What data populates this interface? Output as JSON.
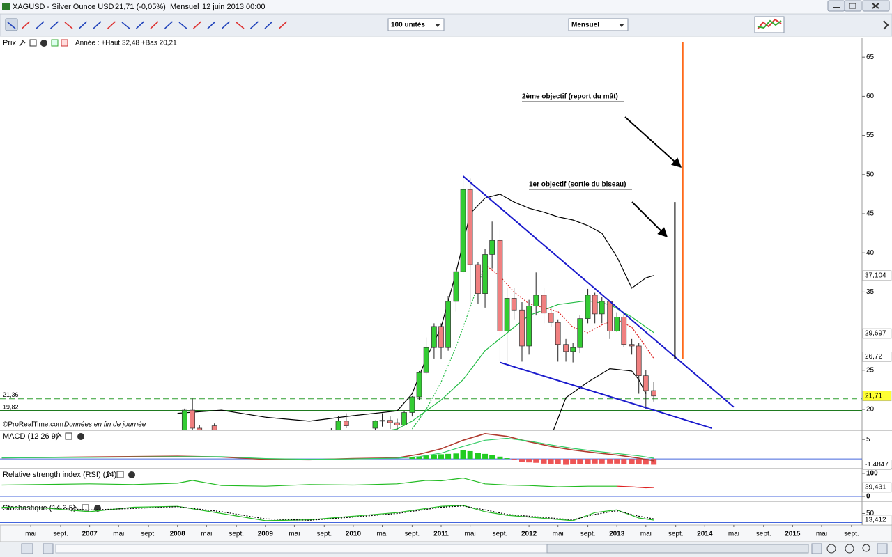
{
  "window": {
    "title": "XAGUSD - Silver Ounce USD",
    "quote": "21,71 (-0,05%)",
    "period": "Mensuel",
    "date": "12 juin 2013 00:00"
  },
  "toolbar": {
    "units": "100 unités",
    "timeframe": "Mensuel"
  },
  "footer": {
    "source": "©ProRealTime.com",
    "note": "Données en fin de journée"
  },
  "annotations": [
    "2ème objectif (report du mât)",
    "1er objectif (sortie du biseau)"
  ],
  "chart_data": [
    {
      "type": "candlestick",
      "title": "Prix",
      "subtitle": "Année : +Haut 32,48 +Bas 20,21",
      "up_color": "#33cc33",
      "down_color": "#f08080",
      "xlim": [
        2005.98,
        2015.79
      ],
      "ylim": [
        17.42,
        67.42
      ],
      "yticks": [
        20,
        25,
        35,
        40,
        45,
        50,
        55,
        60,
        65
      ],
      "xticks": [
        {
          "value": 2006.33,
          "label": "mai"
        },
        {
          "value": 2006.67,
          "label": "sept."
        },
        {
          "value": 2007,
          "label": "2007"
        },
        {
          "value": 2007.33,
          "label": "mai"
        },
        {
          "value": 2007.67,
          "label": "sept."
        },
        {
          "value": 2008,
          "label": "2008"
        },
        {
          "value": 2008.33,
          "label": "mai"
        },
        {
          "value": 2008.67,
          "label": "sept."
        },
        {
          "value": 2009,
          "label": "2009"
        },
        {
          "value": 2009.33,
          "label": "mai"
        },
        {
          "value": 2009.67,
          "label": "sept."
        },
        {
          "value": 2010,
          "label": "2010"
        },
        {
          "value": 2010.33,
          "label": "mai"
        },
        {
          "value": 2010.67,
          "label": "sept."
        },
        {
          "value": 2011,
          "label": "2011"
        },
        {
          "value": 2011.33,
          "label": "mai"
        },
        {
          "value": 2011.67,
          "label": "sept."
        },
        {
          "value": 2012,
          "label": "2012"
        },
        {
          "value": 2012.33,
          "label": "mai"
        },
        {
          "value": 2012.67,
          "label": "sept."
        },
        {
          "value": 2013,
          "label": "2013"
        },
        {
          "value": 2013.33,
          "label": "mai"
        },
        {
          "value": 2013.67,
          "label": "sept."
        },
        {
          "value": 2014,
          "label": "2014"
        },
        {
          "value": 2014.33,
          "label": "mai"
        },
        {
          "value": 2014.67,
          "label": "sept."
        },
        {
          "value": 2015,
          "label": "2015"
        },
        {
          "value": 2015.33,
          "label": "mai"
        },
        {
          "value": 2015.67,
          "label": "sept."
        }
      ],
      "x": [
        2008.08,
        2008.17,
        2008.25,
        2008.42,
        2009.75,
        2009.83,
        2009.92,
        2010.25,
        2010.33,
        2010.42,
        2010.5,
        2010.58,
        2010.67,
        2010.75,
        2010.83,
        2010.92,
        2011,
        2011.08,
        2011.17,
        2011.25,
        2011.33,
        2011.42,
        2011.5,
        2011.58,
        2011.67,
        2011.75,
        2011.83,
        2011.92,
        2012,
        2012.08,
        2012.17,
        2012.25,
        2012.33,
        2012.42,
        2012.5,
        2012.58,
        2012.67,
        2012.75,
        2012.83,
        2012.92,
        2013,
        2013.08,
        2013.17,
        2013.25,
        2013.33,
        2013.42
      ],
      "open": [
        16.9,
        19.9,
        17.6,
        17.9,
        16.5,
        17.2,
        18.5,
        17.6,
        18.5,
        18.6,
        18.3,
        18.0,
        19.6,
        21.6,
        24.7,
        27.9,
        30.6,
        27.9,
        33.8,
        37.6,
        48.1,
        38.5,
        34.8,
        39.8,
        41.6,
        30.0,
        34.2,
        32.7,
        28.1,
        33.2,
        34.6,
        32.3,
        31.1,
        28.3,
        27.4,
        27.9,
        31.6,
        34.6,
        32.2,
        33.8,
        30.0,
        31.8,
        28.3,
        28.1,
        24.3,
        22.4
      ],
      "high": [
        20.1,
        21.4,
        18.0,
        18.2,
        17.6,
        19.2,
        19.5,
        18.6,
        19.5,
        19.1,
        18.8,
        19.8,
        21.7,
        24.9,
        29.2,
        31.0,
        31.0,
        34.5,
        38.2,
        49.8,
        49.5,
        38.8,
        40.5,
        44.0,
        43.0,
        35.5,
        35.5,
        33.7,
        34.0,
        37.5,
        35.5,
        33.0,
        31.5,
        29.0,
        28.5,
        32.0,
        35.4,
        34.9,
        34.4,
        33.9,
        32.4,
        32.2,
        29.0,
        28.5,
        25.0,
        23.5
      ],
      "low": [
        16.5,
        17.2,
        16.8,
        17.1,
        16.3,
        16.9,
        17.6,
        17.1,
        17.8,
        17.5,
        17.2,
        17.9,
        19.1,
        21.2,
        24.5,
        26.5,
        26.4,
        27.5,
        32.5,
        37.3,
        33.2,
        33.5,
        33.0,
        38.0,
        26.1,
        26.0,
        31.5,
        26.1,
        27.0,
        32.0,
        31.0,
        30.5,
        26.1,
        26.1,
        26.0,
        27.2,
        31.0,
        31.0,
        31.0,
        29.0,
        29.9,
        28.0,
        27.0,
        22.0,
        20.0,
        21.0
      ],
      "close": [
        19.9,
        17.6,
        17.0,
        17.3,
        17.2,
        18.5,
        17.9,
        18.5,
        18.6,
        18.3,
        18.0,
        19.6,
        21.6,
        24.7,
        27.9,
        30.6,
        27.9,
        33.8,
        37.6,
        48.1,
        38.5,
        34.8,
        39.8,
        41.6,
        30.0,
        34.2,
        32.7,
        28.1,
        33.2,
        34.6,
        32.3,
        31.1,
        28.3,
        27.4,
        27.9,
        31.6,
        34.6,
        32.2,
        33.8,
        30.0,
        31.8,
        28.3,
        28.1,
        24.3,
        22.4,
        21.71
      ],
      "series": [
        {
          "color": "#000000",
          "x": [
            2008.0,
            2008.5,
            2009.0,
            2009.5,
            2010.0,
            2010.5,
            2010.67,
            2010.83,
            2011.0,
            2011.17,
            2011.33,
            2011.5,
            2011.67,
            2011.83,
            2012.0,
            2012.17,
            2012.33,
            2012.5,
            2012.67,
            2012.83,
            2013.0,
            2013.17,
            2013.33,
            2013.42
          ],
          "values": [
            19.5,
            19.9,
            19.0,
            18.5,
            19.2,
            19.8,
            22.0,
            26.5,
            30.5,
            37.5,
            45.0,
            47.0,
            47.5,
            46.5,
            45.7,
            45.2,
            44.6,
            44.2,
            43.5,
            42.5,
            39.5,
            35.5,
            36.8,
            37.1
          ]
        },
        {
          "color": "#000000",
          "x": [
            2012.25,
            2012.42,
            2012.67,
            2012.92,
            2013.17,
            2013.25,
            2013.33
          ],
          "values": [
            16.5,
            21.5,
            23.5,
            25.2,
            24.9,
            23.8,
            22.0
          ]
        },
        {
          "color": "#22bb44",
          "x": [
            2010.0,
            2010.5,
            2010.67,
            2011.0,
            2011.25,
            2011.5,
            2011.83,
            2012.0,
            2012.33,
            2012.67,
            2012.92,
            2013.17,
            2013.42
          ],
          "values": [
            16.5,
            17.5,
            18.5,
            21.2,
            23.8,
            27.5,
            30.5,
            32.0,
            33.4,
            33.9,
            33.4,
            31.8,
            29.8
          ]
        },
        {
          "color": "#22bb44",
          "dotted": true,
          "x": [
            2010.67,
            2010.83,
            2011.0,
            2011.17,
            2011.33,
            2011.5
          ],
          "values": [
            17.5,
            20.0,
            23.5,
            28.0,
            33.0,
            38.5
          ]
        },
        {
          "color": "#dd2222",
          "dotted": true,
          "x": [
            2011.5,
            2011.67,
            2011.83,
            2012.0,
            2012.17,
            2012.33,
            2012.5,
            2012.67,
            2012.83,
            2013.0,
            2013.17,
            2013.33,
            2013.42
          ],
          "values": [
            38.5,
            37.0,
            35.0,
            33.5,
            33.0,
            32.5,
            30.5,
            29.8,
            30.8,
            31.5,
            30.5,
            28.0,
            26.5
          ]
        }
      ],
      "levels": [
        {
          "value": 21.36,
          "label": "21,36",
          "color": "#2e9e2e",
          "dashed": true
        },
        {
          "value": 19.82,
          "label": "19,82",
          "color": "#1f7a1f"
        }
      ],
      "drawings": [
        {
          "x": [
            2011.25,
            2014.33
          ],
          "y": [
            49.8,
            20.3
          ],
          "color": "#1a1acc"
        },
        {
          "x": [
            2011.67,
            2014.08
          ],
          "y": [
            26.0,
            17.6
          ],
          "color": "#1a1acc"
        },
        {
          "x": [
            2013.66,
            2013.66
          ],
          "y": [
            26.5,
            46.5
          ],
          "color": "#000000"
        },
        {
          "x": [
            2013.75,
            2013.75
          ],
          "y": [
            26.5,
            66.9
          ],
          "color": "#ff6a1a"
        }
      ],
      "markers": [
        {
          "value": 37.104,
          "label": "37,104",
          "color": "#000000",
          "background": "#ffffff"
        },
        {
          "value": 29.697,
          "label": "29,697",
          "color": "#cc0000",
          "background": "#ffffff"
        },
        {
          "value": 26.72,
          "label": "26,72",
          "color": "#cc0000",
          "background": "#ffffff"
        },
        {
          "value": 21.71,
          "label": "21,71",
          "color": "#000000",
          "background": "#ffff33"
        }
      ]
    },
    {
      "type": "line",
      "title": "MACD (12 26 9)",
      "ylim": [
        -2.3,
        7.0
      ],
      "yticks": [
        5
      ],
      "series": [
        {
          "color": "#b03a2e",
          "x": [
            2006.0,
            2007.0,
            2008.0,
            2008.5,
            2009.0,
            2009.5,
            2010.0,
            2010.5,
            2010.75,
            2011.0,
            2011.25,
            2011.5,
            2011.75,
            2012.0,
            2012.25,
            2012.5,
            2012.75,
            2013.0,
            2013.25,
            2013.42
          ],
          "values": [
            0.3,
            0.5,
            0.7,
            0.5,
            -0.1,
            -0.2,
            0.1,
            0.3,
            1.2,
            2.6,
            4.8,
            6.5,
            5.8,
            4.4,
            3.2,
            2.3,
            1.6,
            1.0,
            0.2,
            -0.5
          ]
        },
        {
          "color": "#33cc66",
          "x": [
            2006.0,
            2007.0,
            2008.0,
            2008.5,
            2009.0,
            2009.5,
            2010.0,
            2010.5,
            2010.75,
            2011.0,
            2011.25,
            2011.5,
            2011.75,
            2012.0,
            2012.25,
            2012.5,
            2012.75,
            2013.0,
            2013.25,
            2013.42
          ],
          "values": [
            0.3,
            0.4,
            0.6,
            0.6,
            0.1,
            -0.1,
            0.0,
            0.2,
            0.6,
            1.5,
            3.2,
            4.8,
            5.3,
            4.6,
            3.6,
            2.7,
            2.0,
            1.4,
            0.8,
            0.2
          ]
        }
      ],
      "histogram": {
        "up_color": "#22cc22",
        "down_color": "#ee5555",
        "x": [
          2010.67,
          2010.75,
          2010.83,
          2010.92,
          2011,
          2011.08,
          2011.17,
          2011.25,
          2011.33,
          2011.42,
          2011.5,
          2011.58,
          2011.67,
          2011.75,
          2011.83,
          2011.92,
          2012,
          2012.08,
          2012.17,
          2012.25,
          2012.33,
          2012.42,
          2012.5,
          2012.58,
          2012.67,
          2012.75,
          2012.83,
          2012.92,
          2013,
          2013.08,
          2013.17,
          2013.25,
          2013.33,
          2013.42
        ],
        "values": [
          0.4,
          0.6,
          0.9,
          1.1,
          1.2,
          1.3,
          1.4,
          2.3,
          2.0,
          1.6,
          1.3,
          1.0,
          0.6,
          0.2,
          -0.3,
          -0.7,
          -0.9,
          -1.0,
          -1.2,
          -1.3,
          -1.4,
          -1.5,
          -1.4,
          -1.4,
          -1.3,
          -1.2,
          -1.2,
          -1.2,
          -1.2,
          -1.3,
          -1.3,
          -1.4,
          -1.45,
          -1.4847
        ]
      },
      "markers": [
        {
          "value": -1.4847,
          "label": "-1,4847",
          "color": "#cc0000",
          "background": "#ffffff"
        }
      ]
    },
    {
      "type": "line",
      "title": "Relative strength index (RSI) (14)",
      "ylim": [
        -15,
        115
      ],
      "yticks": [
        0,
        100
      ],
      "series": [
        {
          "color": "#22bb22",
          "x": [
            2006.0,
            2007.0,
            2007.5,
            2008.0,
            2008.17,
            2008.5,
            2009.0,
            2009.5,
            2010.0,
            2010.5,
            2010.83,
            2011.0,
            2011.25,
            2011.5,
            2011.75,
            2012.0,
            2012.33,
            2012.67,
            2013.0
          ],
          "values": [
            50,
            55,
            52,
            58,
            70,
            48,
            45,
            52,
            50,
            55,
            70,
            68,
            80,
            55,
            50,
            48,
            42,
            45,
            45
          ]
        },
        {
          "color": "#dd2222",
          "x": [
            2013.0,
            2013.17,
            2013.33,
            2013.42
          ],
          "values": [
            45,
            42,
            38,
            39.431
          ]
        }
      ],
      "markers": [
        {
          "value": 39.431,
          "label": "39,431",
          "color": "#cc0000",
          "background": "#ffffff"
        }
      ]
    },
    {
      "type": "line",
      "title": "Stochastique (14 3 5)",
      "ylim": [
        -6,
        110
      ],
      "yticks": [
        50
      ],
      "series": [
        {
          "color": "#22bb22",
          "x": [
            2006.0,
            2006.5,
            2007.0,
            2007.5,
            2008.0,
            2008.5,
            2009.0,
            2009.5,
            2010.0,
            2010.5,
            2011.0,
            2011.25,
            2011.5,
            2011.75,
            2012.0,
            2012.5,
            2012.75,
            2013.0,
            2013.25,
            2013.42
          ],
          "values": [
            85,
            80,
            60,
            85,
            90,
            50,
            10,
            15,
            35,
            55,
            90,
            95,
            60,
            40,
            30,
            10,
            55,
            70,
            25,
            13.412
          ]
        },
        {
          "color": "#000000",
          "dotted": true,
          "x": [
            2006.0,
            2006.5,
            2007.0,
            2007.5,
            2008.0,
            2008.5,
            2009.0,
            2009.5,
            2010.0,
            2010.5,
            2011.0,
            2011.25,
            2011.5,
            2011.75,
            2012.0,
            2012.5,
            2012.75,
            2013.0,
            2013.25,
            2013.42
          ],
          "values": [
            80,
            82,
            70,
            78,
            88,
            60,
            20,
            12,
            30,
            50,
            85,
            92,
            70,
            45,
            35,
            15,
            45,
            65,
            35,
            20
          ]
        }
      ],
      "markers": [
        {
          "value": 13.412,
          "label": "13,412",
          "color": "#cc0000",
          "background": "#ffffff"
        }
      ]
    }
  ]
}
